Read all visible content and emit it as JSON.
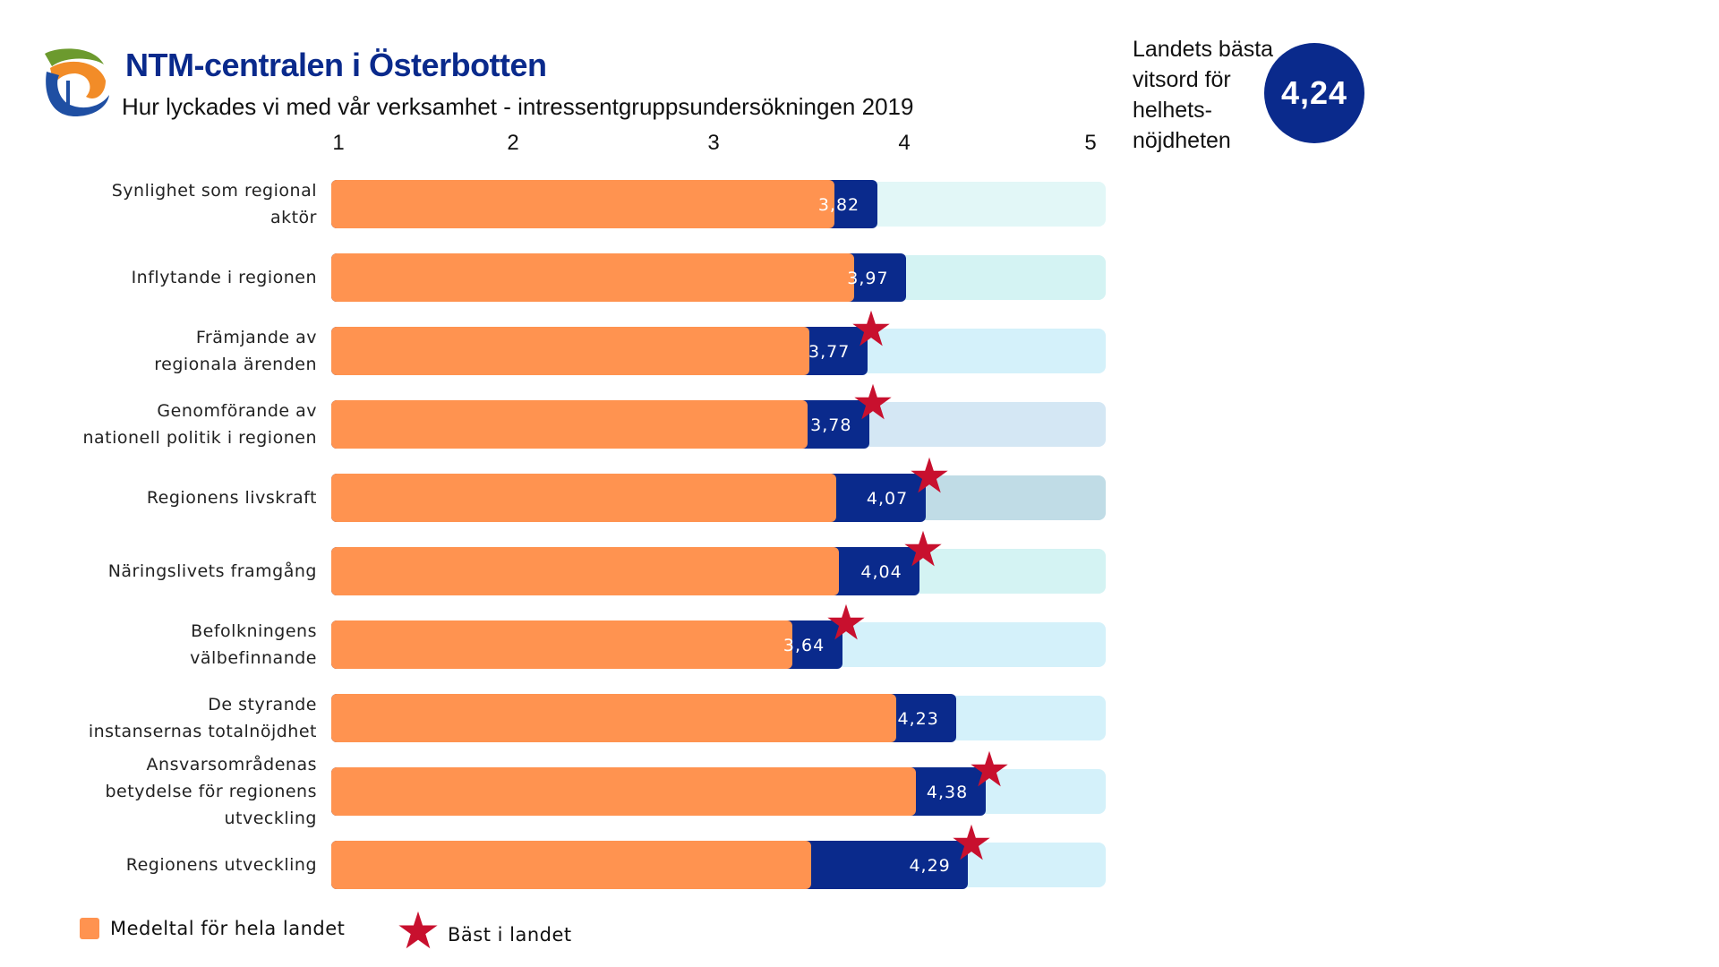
{
  "header": {
    "title": "NTM-centralen i Österbotten",
    "subtitle": "Hur lyckades vi med vår verksamhet - intressentgruppsundersökningen 2019"
  },
  "best_score": {
    "label_lines": [
      "Landets bästa",
      "vitsord för",
      "helhets-",
      "nöjdheten"
    ],
    "value": "4,24"
  },
  "legend": {
    "average": "Medeltal för hela landet",
    "best": "Bäst i landet"
  },
  "colors": {
    "value_bar": "#0a2a8c",
    "average_bar": "#ff9350",
    "star": "#c8102e"
  },
  "chart_data": {
    "type": "bar",
    "orientation": "horizontal",
    "xlim": [
      1,
      5
    ],
    "ticks": [
      "1",
      "2",
      "3",
      "4",
      "5"
    ],
    "grid": false,
    "legend_position": "bottom-left",
    "categories": [
      {
        "label_lines": [
          "Synlighet som regional",
          "aktör"
        ],
        "value": 3.82,
        "value_label": "3,82",
        "average": 3.6,
        "best_in_country": false,
        "track_color": "#e2f7f7"
      },
      {
        "label_lines": [
          "Inflytande i regionen"
        ],
        "value": 3.97,
        "value_label": "3,97",
        "average": 3.7,
        "best_in_country": false,
        "track_color": "#d4f3f3"
      },
      {
        "label_lines": [
          "Främjande av",
          "regionala ärenden"
        ],
        "value": 3.77,
        "value_label": "3,77",
        "average": 3.47,
        "best_in_country": true,
        "track_color": "#d4f1fa"
      },
      {
        "label_lines": [
          "Genomförande av",
          "nationell politik i regionen"
        ],
        "value": 3.78,
        "value_label": "3,78",
        "average": 3.46,
        "best_in_country": true,
        "track_color": "#d4e7f4"
      },
      {
        "label_lines": [
          "Regionens livskraft"
        ],
        "value": 4.07,
        "value_label": "4,07",
        "average": 3.61,
        "best_in_country": true,
        "track_color": "#c0dce6"
      },
      {
        "label_lines": [
          "Näringslivets framgång"
        ],
        "value": 4.04,
        "value_label": "4,04",
        "average": 3.62,
        "best_in_country": true,
        "track_color": "#d4f3f3"
      },
      {
        "label_lines": [
          "Befolkningens",
          "välbefinnande"
        ],
        "value": 3.64,
        "value_label": "3,64",
        "average": 3.38,
        "best_in_country": true,
        "track_color": "#d4f1fa"
      },
      {
        "label_lines": [
          "De styrande",
          "instansernas totalnöjdhet"
        ],
        "value": 4.23,
        "value_label": "4,23",
        "average": 3.92,
        "best_in_country": false,
        "track_color": "#d4f1fa"
      },
      {
        "label_lines": [
          "Ansvarsområdenas",
          "betydelse för regionens",
          "utveckling"
        ],
        "value": 4.38,
        "value_label": "4,38",
        "average": 4.02,
        "best_in_country": true,
        "track_color": "#d4f1fa"
      },
      {
        "label_lines": [
          "Regionens utveckling"
        ],
        "value": 4.29,
        "value_label": "4,29",
        "average": 3.48,
        "best_in_country": true,
        "track_color": "#d4f1fa"
      }
    ]
  }
}
